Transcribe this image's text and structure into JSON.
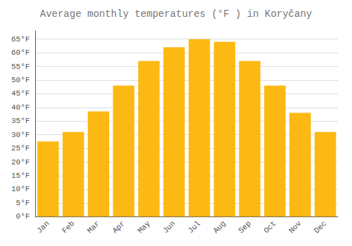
{
  "chart_data": {
    "type": "bar",
    "title": "Average monthly temperatures (°F ) in Koryčany",
    "categories": [
      "Jan",
      "Feb",
      "Mar",
      "Apr",
      "May",
      "Jun",
      "Jul",
      "Aug",
      "Sep",
      "Oct",
      "Nov",
      "Dec"
    ],
    "values": [
      27.5,
      31.0,
      38.5,
      48.0,
      57.0,
      62.0,
      65.0,
      64.0,
      57.0,
      48.0,
      38.0,
      31.0
    ],
    "color": "#FDB913",
    "ylim": [
      0,
      68
    ],
    "yticks": [
      {
        "value": 0,
        "label": "0°F"
      },
      {
        "value": 5,
        "label": "5°F"
      },
      {
        "value": 10,
        "label": "10°F"
      },
      {
        "value": 15,
        "label": "15°F"
      },
      {
        "value": 20,
        "label": "20°F"
      },
      {
        "value": 25,
        "label": "25°F"
      },
      {
        "value": 30,
        "label": "30°F"
      },
      {
        "value": 35,
        "label": "35°F"
      },
      {
        "value": 40,
        "label": "40°F"
      },
      {
        "value": 45,
        "label": "45°F"
      },
      {
        "value": 50,
        "label": "50°F"
      },
      {
        "value": 55,
        "label": "55°F"
      },
      {
        "value": 60,
        "label": "60°F"
      },
      {
        "value": 65,
        "label": "65°F"
      }
    ],
    "grid": true
  }
}
